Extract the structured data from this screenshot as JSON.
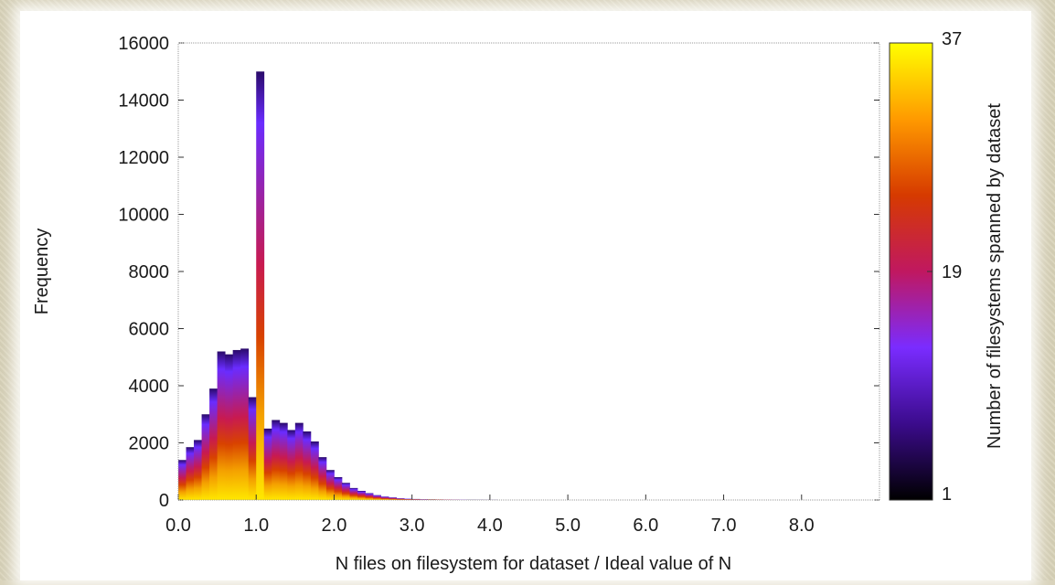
{
  "chart_data": {
    "type": "bar",
    "title": "",
    "xlabel": "N files on filesystem for dataset / Ideal value of N",
    "ylabel": "Frequency",
    "xlim": [
      0,
      9
    ],
    "ylim": [
      0,
      16000
    ],
    "x_ticks": [
      "0.0",
      "1.0",
      "2.0",
      "3.0",
      "4.0",
      "5.0",
      "6.0",
      "7.0",
      "8.0"
    ],
    "y_ticks": [
      "0",
      "2000",
      "4000",
      "6000",
      "8000",
      "10000",
      "12000",
      "14000",
      "16000"
    ],
    "bin_width": 0.1,
    "bin_starts": [
      0.0,
      0.1,
      0.2,
      0.3,
      0.4,
      0.5,
      0.6,
      0.7,
      0.8,
      0.9,
      1.0,
      1.1,
      1.2,
      1.3,
      1.4,
      1.5,
      1.6,
      1.7,
      1.8,
      1.9,
      2.0,
      2.1,
      2.2,
      2.3,
      2.4,
      2.5,
      2.6,
      2.7,
      2.8,
      2.9,
      3.0,
      3.1,
      3.2,
      3.3,
      3.4,
      3.5,
      3.6,
      3.7,
      3.8,
      3.9,
      4.0
    ],
    "frequency": [
      1400,
      1850,
      2100,
      3000,
      3900,
      5200,
      5100,
      5250,
      5300,
      3600,
      15000,
      2500,
      2800,
      2700,
      2450,
      2700,
      2400,
      2050,
      1500,
      1050,
      800,
      600,
      420,
      320,
      240,
      170,
      120,
      90,
      60,
      45,
      35,
      28,
      22,
      18,
      14,
      12,
      10,
      8,
      7,
      6,
      5
    ],
    "colorbar": {
      "label": "Number of filesystems spanned by dataset",
      "min": 1,
      "max": 37,
      "ticks": [
        "1",
        "19",
        "37"
      ],
      "colormap": [
        "#000000",
        "#3b0b8c",
        "#7a2cff",
        "#c01860",
        "#d63a00",
        "#ff9a00",
        "#ffff00"
      ]
    }
  }
}
